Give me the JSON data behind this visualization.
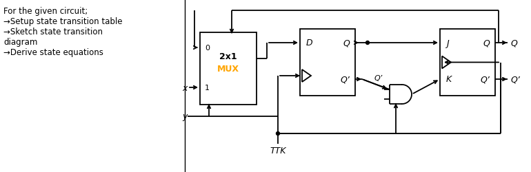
{
  "bg_color": "#ffffff",
  "text_color": "#000000",
  "mux_color": "#ffa500",
  "left_panel_text": [
    "For the given circuit;",
    "→Setup state transition table",
    "→Sketch state transition",
    "diagram",
    "→Derive state equations"
  ],
  "ttk_label": "TTK",
  "mux_label_top": "2x1",
  "mux_label_bot": "MUX",
  "x_label": "x",
  "y_label": "y",
  "d_label": "D",
  "q_label": "Q",
  "q_prime_label": "Q’",
  "j_label": "J",
  "k_label": "K",
  "figsize": [
    7.7,
    2.51
  ],
  "dpi": 100,
  "lw": 1.3
}
